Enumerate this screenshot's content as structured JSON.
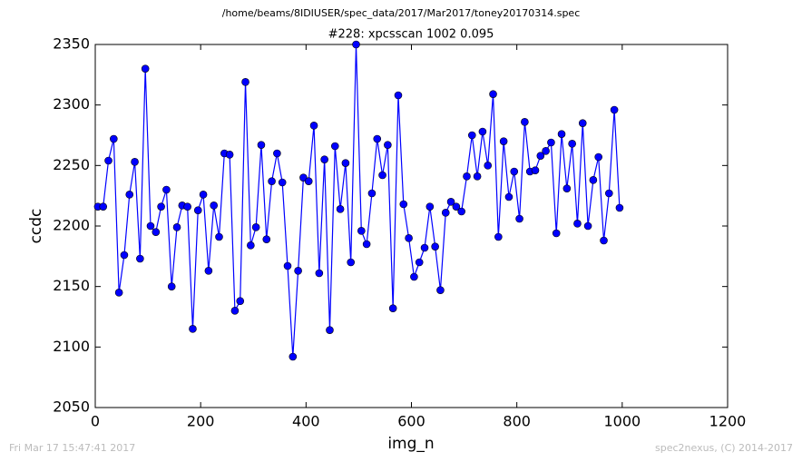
{
  "chart_data": {
    "type": "line",
    "title": "/home/beams/8IDIUSER/spec_data/2017/Mar2017/toney20170314.spec",
    "subtitle": "#228: xpcsscan 1002 0.095",
    "x_label": "img_n",
    "y_label": "ccdc",
    "xlim": [
      0,
      1200
    ],
    "xticks": [
      0,
      200,
      400,
      600,
      800,
      1000,
      1200
    ],
    "ylim": [
      2050,
      2350
    ],
    "yticks": [
      2050,
      2100,
      2150,
      2200,
      2250,
      2300,
      2350
    ],
    "grid": false,
    "series": [
      {
        "name": "ccdc",
        "color": "#0000ff",
        "x": [
          5,
          15,
          25,
          35,
          45,
          55,
          65,
          75,
          85,
          95,
          105,
          115,
          125,
          135,
          145,
          155,
          165,
          175,
          185,
          195,
          205,
          215,
          225,
          235,
          245,
          255,
          265,
          275,
          285,
          295,
          305,
          315,
          325,
          335,
          345,
          355,
          365,
          375,
          385,
          395,
          405,
          415,
          425,
          435,
          445,
          455,
          465,
          475,
          485,
          495,
          505,
          515,
          525,
          535,
          545,
          555,
          565,
          575,
          585,
          595,
          605,
          615,
          625,
          635,
          645,
          655,
          665,
          675,
          685,
          695,
          705,
          715,
          725,
          735,
          745,
          755,
          765,
          775,
          785,
          795,
          805,
          815,
          825,
          835,
          845,
          855,
          865,
          875,
          885,
          895,
          905,
          915,
          925,
          935,
          945,
          955,
          965,
          975,
          985,
          995
        ],
        "values": [
          2216,
          2216,
          2254,
          2272,
          2145,
          2176,
          2226,
          2253,
          2173,
          2330,
          2200,
          2195,
          2216,
          2230,
          2150,
          2199,
          2217,
          2216,
          2115,
          2213,
          2226,
          2163,
          2217,
          2191,
          2260,
          2259,
          2130,
          2138,
          2319,
          2184,
          2199,
          2267,
          2189,
          2237,
          2260,
          2236,
          2167,
          2092,
          2163,
          2240,
          2237,
          2283,
          2161,
          2255,
          2114,
          2266,
          2214,
          2252,
          2170,
          2350,
          2196,
          2185,
          2227,
          2272,
          2242,
          2267,
          2132,
          2308,
          2218,
          2190,
          2158,
          2170,
          2182,
          2216,
          2183,
          2147,
          2211,
          2220,
          2216,
          2212,
          2241,
          2275,
          2241,
          2278,
          2250,
          2309,
          2191,
          2270,
          2224,
          2245,
          2206,
          2286,
          2245,
          2246,
          2258,
          2262,
          2269,
          2194,
          2276,
          2231,
          2268,
          2202,
          2285,
          2200,
          2238,
          2257,
          2188,
          2227,
          2296,
          2215
        ]
      }
    ]
  },
  "footer": {
    "timestamp": "Fri Mar 17 15:47:41 2017",
    "credit": "spec2nexus, (C) 2014-2017"
  }
}
